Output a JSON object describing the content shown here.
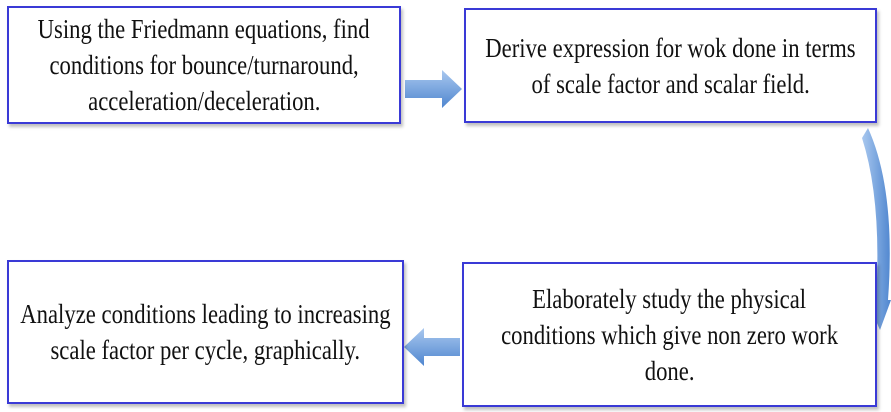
{
  "nodes": [
    {
      "lines": [
        "Using the Friedmann equations, find",
        "conditions for bounce/turnaround,",
        "acceleration/deceleration."
      ]
    },
    {
      "lines": [
        "Derive expression for wok done in terms",
        "of scale factor and scalar field."
      ]
    },
    {
      "lines": [
        "Elaborately study the physical",
        "conditions which give non zero work",
        "done."
      ]
    },
    {
      "lines": [
        "Analyze conditions leading to increasing",
        "scale factor per cycle, graphically."
      ]
    }
  ]
}
